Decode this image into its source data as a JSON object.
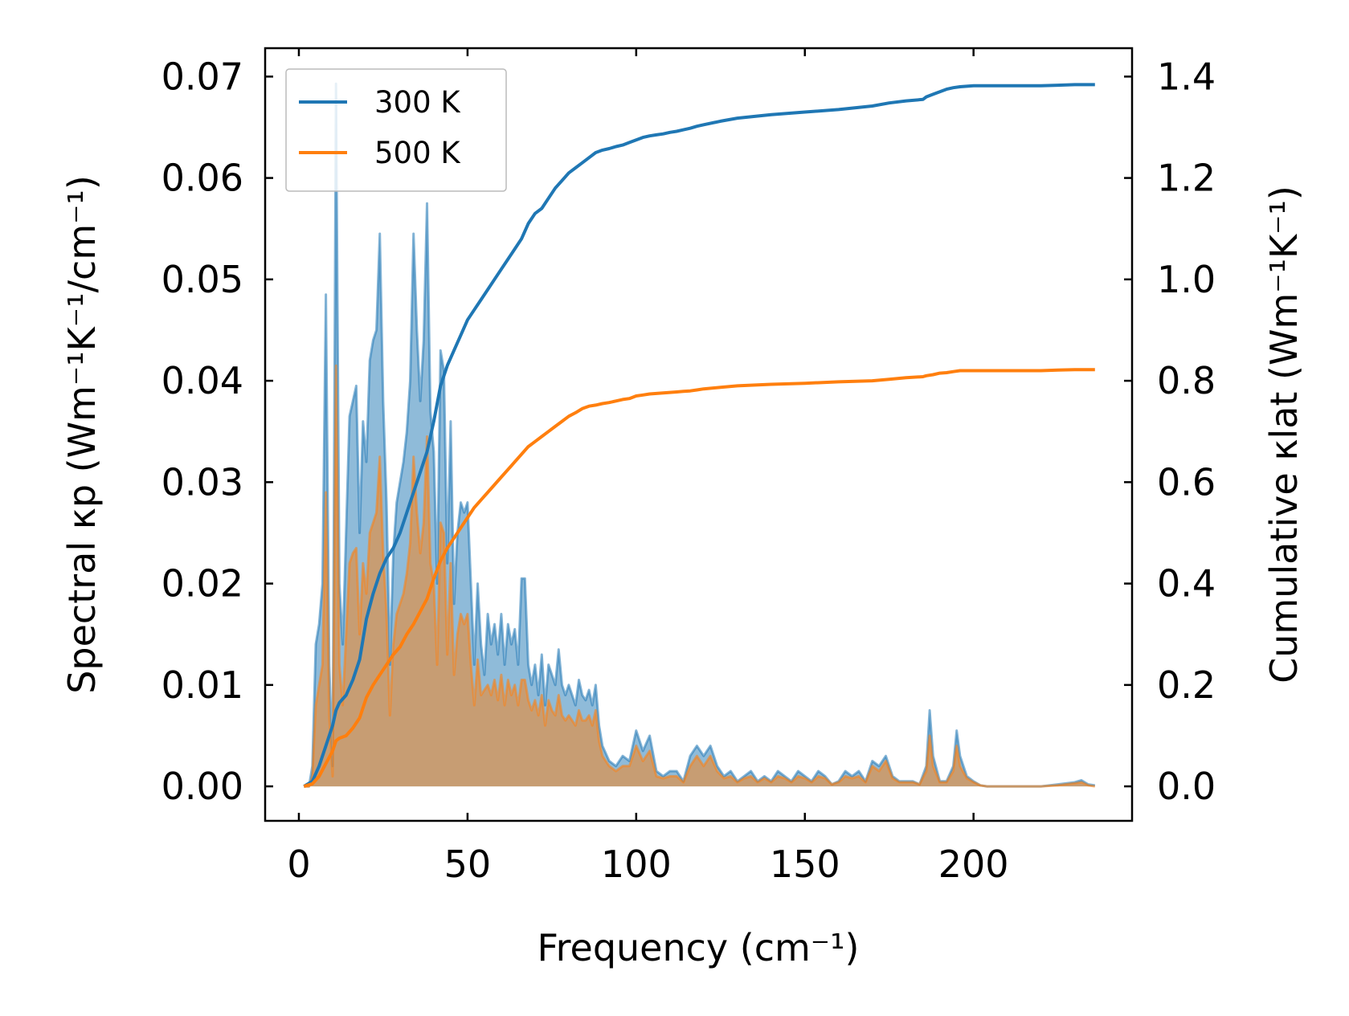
{
  "chart_data": {
    "type": "line",
    "xlabel": "Frequency (cm⁻¹)",
    "ylabel_left": "Spectral κp (Wm⁻¹K⁻¹/cm⁻¹)",
    "ylabel_right": "Cumulative κlat (Wm⁻¹K⁻¹)",
    "xlim": [
      -10,
      247
    ],
    "ylim_left": [
      -0.0034,
      0.0728
    ],
    "ylim_right": [
      -0.068,
      1.456
    ],
    "x_ticks": [
      "0",
      "50",
      "100",
      "150",
      "200"
    ],
    "x_tick_values": [
      0,
      50,
      100,
      150,
      200
    ],
    "y_left_ticks": [
      "0.00",
      "0.01",
      "0.02",
      "0.03",
      "0.04",
      "0.05",
      "0.06",
      "0.07"
    ],
    "y_left_tick_values": [
      0,
      0.01,
      0.02,
      0.03,
      0.04,
      0.05,
      0.06,
      0.07
    ],
    "y_right_ticks": [
      "0.0",
      "0.2",
      "0.4",
      "0.6",
      "0.8",
      "1.0",
      "1.2",
      "1.4"
    ],
    "y_right_tick_values": [
      0,
      0.2,
      0.4,
      0.6,
      0.8,
      1.0,
      1.2,
      1.4
    ],
    "legend_position": "top-left",
    "series": [
      {
        "name": "300 K",
        "color": "#1f77b4",
        "spectral": {
          "x": [
            1.5,
            3,
            4,
            5,
            6,
            7,
            8,
            9,
            10,
            11,
            12,
            13,
            15,
            16,
            17,
            18,
            19,
            20,
            21,
            22,
            23,
            24,
            25,
            26,
            27,
            28,
            29,
            30,
            31,
            32,
            33,
            34,
            35,
            36,
            37,
            38,
            39,
            40,
            41,
            42,
            43,
            44,
            45,
            46,
            47,
            48,
            49,
            50,
            51,
            52,
            53,
            54,
            55,
            56,
            57,
            58,
            59,
            60,
            61,
            62,
            63,
            64,
            65,
            66,
            67,
            68,
            69,
            70,
            71,
            72,
            73,
            74,
            75,
            76,
            77,
            78,
            79,
            80,
            81,
            82,
            83,
            84,
            85,
            86,
            87,
            88,
            89,
            90,
            92,
            94,
            96,
            98,
            100,
            102,
            104,
            106,
            108,
            110,
            112,
            114,
            116,
            118,
            120,
            122,
            124,
            126,
            128,
            130,
            132,
            134,
            136,
            138,
            140,
            142,
            144,
            146,
            148,
            150,
            152,
            154,
            156,
            158,
            160,
            162,
            164,
            166,
            168,
            170,
            172,
            174,
            176,
            178,
            180,
            182,
            184,
            186,
            187,
            188,
            190,
            192,
            194,
            195,
            196,
            198,
            200,
            202,
            204,
            210,
            220,
            225,
            230,
            232,
            234,
            236
          ],
          "y": [
            0.0,
            0.0,
            0.002,
            0.014,
            0.016,
            0.02,
            0.0485,
            0.012,
            0.002,
            0.0693,
            0.02,
            0.014,
            0.0365,
            0.038,
            0.0395,
            0.025,
            0.036,
            0.032,
            0.042,
            0.044,
            0.045,
            0.0545,
            0.038,
            0.028,
            0.012,
            0.023,
            0.028,
            0.03,
            0.032,
            0.035,
            0.04,
            0.0545,
            0.045,
            0.038,
            0.044,
            0.0575,
            0.037,
            0.033,
            0.02,
            0.043,
            0.041,
            0.022,
            0.036,
            0.018,
            0.025,
            0.028,
            0.027,
            0.028,
            0.02,
            0.012,
            0.02,
            0.014,
            0.011,
            0.017,
            0.014,
            0.016,
            0.013,
            0.017,
            0.012,
            0.016,
            0.014,
            0.0155,
            0.012,
            0.0205,
            0.0205,
            0.012,
            0.01,
            0.012,
            0.009,
            0.013,
            0.008,
            0.012,
            0.011,
            0.01,
            0.0135,
            0.01,
            0.009,
            0.01,
            0.009,
            0.008,
            0.0105,
            0.009,
            0.0085,
            0.0095,
            0.008,
            0.01,
            0.006,
            0.004,
            0.0025,
            0.002,
            0.003,
            0.0025,
            0.0055,
            0.0035,
            0.005,
            0.0015,
            0.001,
            0.0015,
            0.0015,
            0.0005,
            0.003,
            0.004,
            0.003,
            0.004,
            0.002,
            0.001,
            0.0015,
            0.0005,
            0.001,
            0.0015,
            0.0005,
            0.001,
            0.0005,
            0.0015,
            0.001,
            0.0005,
            0.0015,
            0.001,
            0.0005,
            0.0015,
            0.001,
            0.0002,
            0.0005,
            0.0015,
            0.001,
            0.0015,
            0.0005,
            0.0025,
            0.002,
            0.003,
            0.001,
            0.0005,
            0.0005,
            0.0005,
            0.0002,
            0.002,
            0.0075,
            0.003,
            0.0005,
            0.0005,
            0.002,
            0.0055,
            0.003,
            0.001,
            0.0005,
            0.0001,
            0.0,
            0.0,
            0.0,
            0.0002,
            0.0004,
            0.0006,
            0.0002,
            0.0001
          ]
        },
        "cumulative": {
          "x": [
            1.5,
            4,
            6,
            8,
            10,
            11,
            12,
            14,
            16,
            18,
            20,
            22,
            24,
            26,
            28,
            30,
            32,
            34,
            36,
            38,
            40,
            42,
            44,
            46,
            48,
            50,
            52,
            54,
            56,
            58,
            60,
            62,
            64,
            66,
            68,
            70,
            72,
            74,
            76,
            78,
            80,
            82,
            84,
            86,
            88,
            90,
            92,
            94,
            96,
            98,
            100,
            102,
            104,
            106,
            108,
            110,
            112,
            114,
            116,
            118,
            120,
            125,
            130,
            140,
            150,
            160,
            170,
            175,
            180,
            185,
            186,
            188,
            190,
            192,
            194,
            196,
            200,
            210,
            220,
            225,
            230,
            236
          ],
          "y": [
            0.0,
            0.01,
            0.04,
            0.08,
            0.12,
            0.15,
            0.165,
            0.18,
            0.21,
            0.25,
            0.33,
            0.38,
            0.42,
            0.45,
            0.47,
            0.5,
            0.54,
            0.58,
            0.62,
            0.66,
            0.72,
            0.79,
            0.83,
            0.86,
            0.89,
            0.92,
            0.94,
            0.96,
            0.98,
            1.0,
            1.02,
            1.04,
            1.06,
            1.08,
            1.11,
            1.13,
            1.14,
            1.16,
            1.18,
            1.195,
            1.21,
            1.22,
            1.23,
            1.24,
            1.25,
            1.255,
            1.258,
            1.262,
            1.265,
            1.27,
            1.275,
            1.28,
            1.283,
            1.285,
            1.287,
            1.29,
            1.292,
            1.295,
            1.298,
            1.302,
            1.305,
            1.312,
            1.318,
            1.325,
            1.33,
            1.335,
            1.342,
            1.348,
            1.352,
            1.355,
            1.36,
            1.365,
            1.37,
            1.375,
            1.378,
            1.38,
            1.382,
            1.382,
            1.382,
            1.383,
            1.384,
            1.384
          ]
        }
      },
      {
        "name": "500 K",
        "color": "#ff7f0e",
        "spectral": {
          "x": [
            1.5,
            3,
            4,
            5,
            6,
            7,
            8,
            9,
            10,
            11,
            12,
            13,
            15,
            16,
            17,
            18,
            19,
            20,
            21,
            22,
            23,
            24,
            25,
            26,
            27,
            28,
            29,
            30,
            31,
            32,
            33,
            34,
            35,
            36,
            37,
            38,
            39,
            40,
            41,
            42,
            43,
            44,
            45,
            46,
            47,
            48,
            49,
            50,
            51,
            52,
            53,
            54,
            55,
            56,
            57,
            58,
            59,
            60,
            61,
            62,
            63,
            64,
            65,
            66,
            67,
            68,
            69,
            70,
            71,
            72,
            73,
            74,
            75,
            76,
            77,
            78,
            79,
            80,
            81,
            82,
            83,
            84,
            85,
            86,
            87,
            88,
            89,
            90,
            92,
            94,
            96,
            98,
            100,
            102,
            104,
            106,
            108,
            110,
            112,
            114,
            116,
            118,
            120,
            122,
            124,
            126,
            128,
            130,
            132,
            134,
            136,
            138,
            140,
            142,
            144,
            146,
            148,
            150,
            152,
            154,
            156,
            158,
            160,
            162,
            164,
            166,
            168,
            170,
            172,
            174,
            176,
            178,
            180,
            182,
            184,
            186,
            187,
            188,
            190,
            192,
            194,
            195,
            196,
            198,
            200,
            202,
            204,
            210,
            220,
            225,
            230,
            232,
            234,
            236
          ],
          "y": [
            0.0,
            0.0,
            0.001,
            0.008,
            0.01,
            0.012,
            0.029,
            0.007,
            0.001,
            0.0415,
            0.012,
            0.008,
            0.022,
            0.023,
            0.0235,
            0.015,
            0.022,
            0.019,
            0.025,
            0.026,
            0.027,
            0.0325,
            0.023,
            0.017,
            0.007,
            0.014,
            0.017,
            0.018,
            0.019,
            0.021,
            0.024,
            0.0325,
            0.027,
            0.023,
            0.026,
            0.0345,
            0.022,
            0.02,
            0.012,
            0.026,
            0.025,
            0.013,
            0.022,
            0.011,
            0.015,
            0.017,
            0.016,
            0.017,
            0.012,
            0.008,
            0.0125,
            0.009,
            0.0095,
            0.01,
            0.009,
            0.0105,
            0.0085,
            0.011,
            0.008,
            0.0105,
            0.009,
            0.01,
            0.008,
            0.0105,
            0.0105,
            0.0085,
            0.0075,
            0.0085,
            0.007,
            0.009,
            0.006,
            0.0085,
            0.0075,
            0.007,
            0.009,
            0.007,
            0.0065,
            0.007,
            0.0065,
            0.006,
            0.0075,
            0.0065,
            0.0065,
            0.007,
            0.006,
            0.0075,
            0.0045,
            0.003,
            0.002,
            0.0015,
            0.002,
            0.002,
            0.004,
            0.0025,
            0.0035,
            0.001,
            0.0008,
            0.001,
            0.001,
            0.0004,
            0.002,
            0.003,
            0.002,
            0.003,
            0.0015,
            0.0008,
            0.001,
            0.0004,
            0.0008,
            0.001,
            0.0004,
            0.0008,
            0.0004,
            0.001,
            0.0008,
            0.0004,
            0.001,
            0.0008,
            0.0004,
            0.001,
            0.0008,
            0.0002,
            0.0004,
            0.001,
            0.0008,
            0.001,
            0.0004,
            0.002,
            0.0015,
            0.0025,
            0.0008,
            0.0004,
            0.0004,
            0.0004,
            0.0002,
            0.0015,
            0.005,
            0.002,
            0.0004,
            0.0004,
            0.0015,
            0.004,
            0.002,
            0.0008,
            0.0004,
            0.0001,
            0.0,
            0.0,
            0.0,
            0.0001,
            0.0003,
            0.0004,
            0.0001,
            0.0
          ]
        },
        "cumulative": {
          "x": [
            1.5,
            4,
            6,
            8,
            10,
            11,
            12,
            14,
            16,
            18,
            20,
            22,
            24,
            26,
            28,
            30,
            32,
            34,
            36,
            38,
            40,
            42,
            44,
            46,
            48,
            50,
            52,
            54,
            56,
            58,
            60,
            62,
            64,
            66,
            68,
            70,
            72,
            74,
            76,
            78,
            80,
            82,
            84,
            86,
            88,
            90,
            92,
            94,
            96,
            98,
            100,
            102,
            104,
            106,
            108,
            110,
            112,
            114,
            116,
            118,
            120,
            125,
            130,
            140,
            150,
            160,
            170,
            175,
            180,
            185,
            186,
            188,
            190,
            192,
            194,
            196,
            200,
            210,
            220,
            225,
            230,
            236
          ],
          "y": [
            0.0,
            0.005,
            0.02,
            0.045,
            0.07,
            0.09,
            0.095,
            0.1,
            0.115,
            0.135,
            0.175,
            0.2,
            0.22,
            0.24,
            0.26,
            0.275,
            0.3,
            0.32,
            0.345,
            0.37,
            0.41,
            0.445,
            0.47,
            0.49,
            0.51,
            0.53,
            0.55,
            0.565,
            0.58,
            0.595,
            0.61,
            0.625,
            0.64,
            0.655,
            0.67,
            0.68,
            0.69,
            0.7,
            0.71,
            0.72,
            0.73,
            0.737,
            0.745,
            0.75,
            0.752,
            0.755,
            0.757,
            0.76,
            0.763,
            0.765,
            0.77,
            0.772,
            0.774,
            0.775,
            0.776,
            0.777,
            0.778,
            0.779,
            0.78,
            0.782,
            0.784,
            0.787,
            0.79,
            0.793,
            0.795,
            0.798,
            0.8,
            0.803,
            0.806,
            0.808,
            0.81,
            0.812,
            0.815,
            0.816,
            0.818,
            0.82,
            0.82,
            0.82,
            0.82,
            0.821,
            0.822,
            0.822
          ]
        }
      }
    ]
  }
}
